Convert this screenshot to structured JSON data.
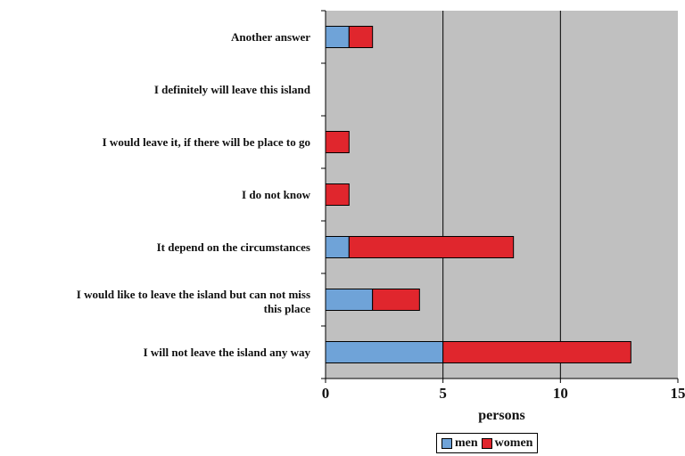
{
  "chart_data": {
    "type": "bar",
    "orientation": "horizontal",
    "stacked": true,
    "categories": [
      "Another answer",
      "I definitely will leave this island",
      "I would leave it, if there will be place to go",
      "I do not know",
      "It depend on the circumstances",
      "I would like to leave the island but can not miss this place",
      "I will not leave the island any way"
    ],
    "category_lines": [
      [
        "Another answer"
      ],
      [
        "I definitely will leave this island"
      ],
      [
        "I would leave it, if there will be place to go"
      ],
      [
        "I do not know"
      ],
      [
        "It depend on the circumstances"
      ],
      [
        "I would like to leave the island but can not miss",
        "this place"
      ],
      [
        "I will not leave the island any way"
      ]
    ],
    "series": [
      {
        "name": "men",
        "values": [
          1,
          0,
          0,
          0,
          1,
          2,
          5
        ],
        "color": "#6fa3d8"
      },
      {
        "name": "women",
        "values": [
          1,
          0,
          1,
          1,
          7,
          2,
          8
        ],
        "color": "#e0262d"
      }
    ],
    "xlabel": "persons",
    "xlim": [
      0,
      15
    ],
    "xticks": [
      0,
      5,
      10,
      15
    ],
    "grid": true,
    "plot_background": "#c0c0c0",
    "legend_position": "bottom"
  }
}
